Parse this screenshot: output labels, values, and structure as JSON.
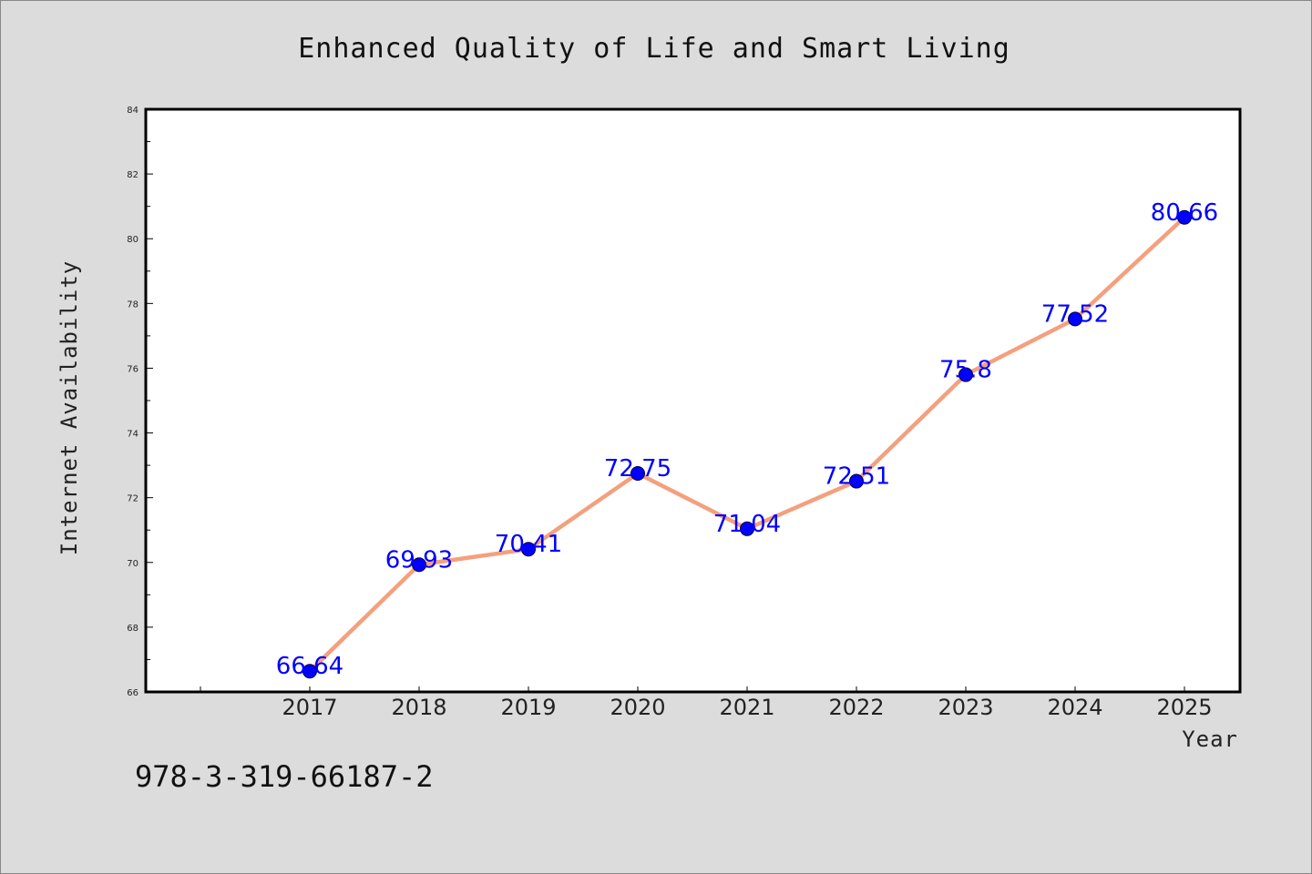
{
  "chart_data": {
    "type": "line",
    "title": "Enhanced Quality of Life and Smart Living",
    "xlabel": "Year",
    "ylabel": "Internet Availability",
    "categories": [
      "2017",
      "2018",
      "2019",
      "2020",
      "2021",
      "2022",
      "2023",
      "2024",
      "2025"
    ],
    "values": [
      66.64,
      69.93,
      70.41,
      72.75,
      71.04,
      72.51,
      75.8,
      77.52,
      80.66
    ],
    "data_labels": [
      "66.64",
      "69.93",
      "70.41",
      "72.75",
      "71.04",
      "72.51",
      "75.8",
      "77.52",
      "80.66"
    ],
    "ylim": [
      66,
      84
    ],
    "yticks": [
      66,
      68,
      70,
      72,
      74,
      76,
      78,
      80,
      82,
      84
    ],
    "grid": false,
    "legend": "none",
    "line_color": "#f4a07e",
    "marker_color": "#0000ff",
    "label_color": "#0000ff",
    "background_color": "#dcdcdc",
    "plot_background_color": "#ffffff"
  },
  "footer": {
    "isbn": "978-3-319-66187-2"
  }
}
